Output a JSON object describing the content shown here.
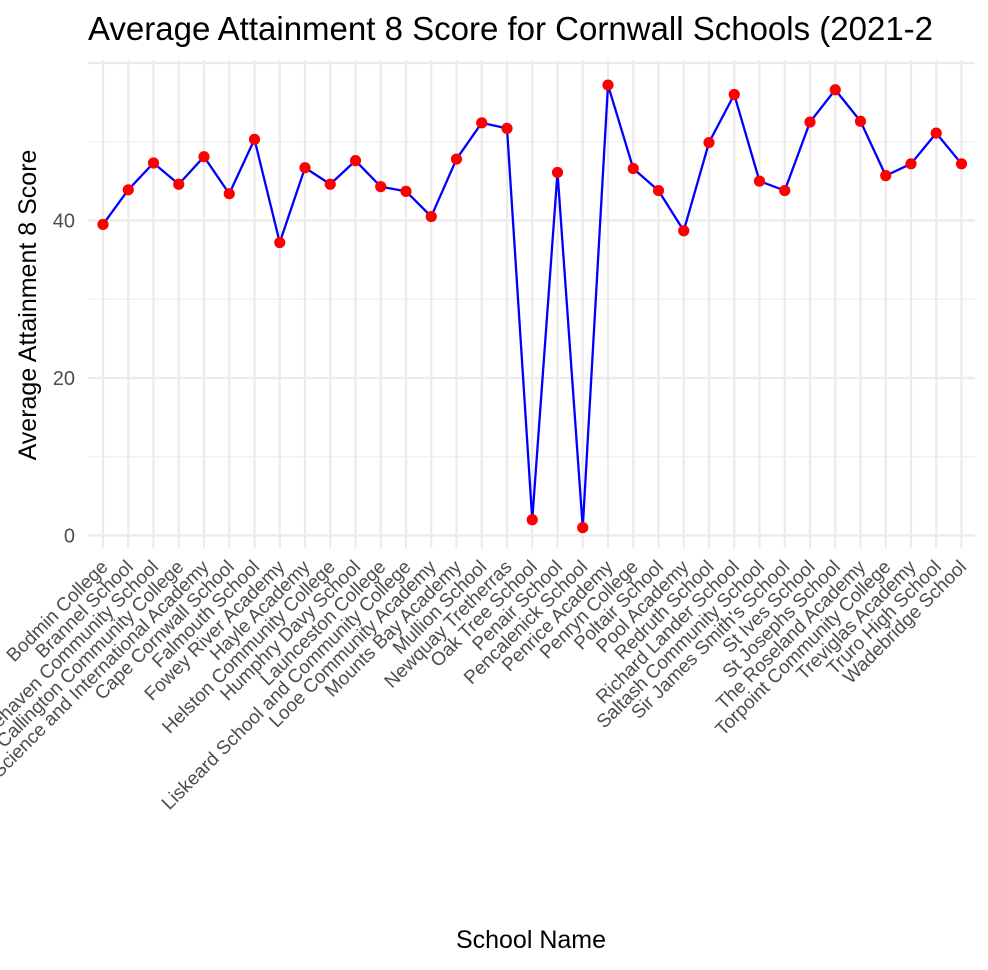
{
  "chart_data": {
    "type": "line",
    "title": "Average Attainment 8 Score for Cornwall Schools (2021-2",
    "xlabel": "School Name",
    "ylabel": "Average Attainment 8 Score",
    "ylim": [
      0,
      60
    ],
    "yticks": [
      0,
      20,
      40
    ],
    "grid": true,
    "line_color": "#0000ff",
    "point_color": "#ff0000",
    "categories": [
      "Bodmin College",
      "Brannel School",
      "Budehaven Community School",
      "Callington Community College",
      "Camborne Science and International Academy",
      "Cape Cornwall School",
      "Falmouth School",
      "Fowey River Academy",
      "Hayle Academy",
      "Helston Community College",
      "Humphry Davy School",
      "Launceston College",
      "Liskeard School and Community College",
      "Looe Community Academy",
      "Mounts Bay Academy",
      "Mullion School",
      "Newquay Tretherras",
      "Oak Tree School",
      "Penair School",
      "Pencalenick School",
      "Penrice Academy",
      "Penryn College",
      "Poltair School",
      "Pool Academy",
      "Redruth School",
      "Richard Lander School",
      "Saltash Community School",
      "Sir James Smith's School",
      "St Ives School",
      "St Josephs School",
      "The Roseland Academy",
      "Torpoint Community College",
      "Treviglas Academy",
      "Truro High School",
      "Wadebridge School"
    ],
    "values": [
      39.5,
      43.9,
      47.3,
      44.6,
      48.1,
      43.4,
      50.3,
      37.2,
      46.7,
      44.6,
      47.6,
      44.3,
      43.7,
      40.5,
      47.8,
      52.4,
      51.7,
      2.0,
      46.1,
      1.0,
      57.2,
      46.6,
      43.8,
      38.7,
      49.9,
      56.0,
      45.0,
      43.8,
      52.5,
      56.6,
      52.6,
      45.7,
      47.2,
      51.1,
      47.2
    ]
  }
}
